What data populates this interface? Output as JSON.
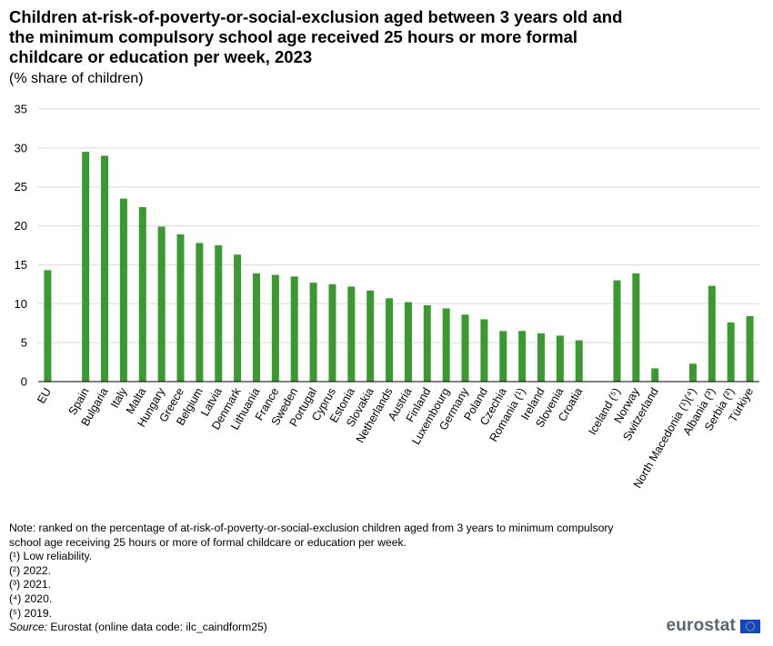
{
  "header": {
    "title": "Children at-risk-of-poverty-or-social-exclusion aged between 3 years old and the minimum compulsory school age received 25 hours or more formal childcare or education per week, 2023",
    "subtitle": "(% share of children)"
  },
  "colors": {
    "bar": "#3a9a2f",
    "grid": "#d9d9d9",
    "axis": "#000000",
    "logo_text": "#5b6770",
    "flag": "#0e47cb",
    "flag_star": "#ffcc00"
  },
  "chart_data": {
    "type": "bar",
    "title": "Children at-risk-of-poverty-or-social-exclusion aged between 3 years old and the minimum compulsory school age received 25 hours or more formal childcare or education per week, 2023",
    "ylabel": "% share of children",
    "ylim": [
      0,
      35
    ],
    "yticks": [
      0,
      5,
      10,
      15,
      20,
      25,
      30,
      35
    ],
    "grid": true,
    "categories": [
      "EU",
      "",
      "Spain",
      "Bulgaria",
      "Italy",
      "Malta",
      "Hungary",
      "Greece",
      "Belgium",
      "Latvia",
      "Denmark",
      "Lithuania",
      "France",
      "Sweden",
      "Portugal",
      "Cyprus",
      "Estonia",
      "Slovakia",
      "Netherlands",
      "Austria",
      "Finland",
      "Luxembourg",
      "Germany",
      "Poland",
      "Czechia",
      "Romania (¹)",
      "Ireland",
      "Slovenia",
      "Croatia",
      "",
      "Iceland (⁵)",
      "Norway",
      "Switzerland",
      "",
      "North Macedonia (¹)(⁴)",
      "Albania (³)",
      "Serbia (²)",
      "Türkiye"
    ],
    "values": [
      14.3,
      null,
      29.5,
      29.0,
      23.5,
      22.4,
      19.9,
      18.9,
      17.8,
      17.5,
      16.3,
      13.9,
      13.7,
      13.5,
      12.7,
      12.5,
      12.2,
      11.7,
      10.7,
      10.2,
      9.8,
      9.4,
      8.6,
      8.0,
      6.5,
      6.5,
      6.2,
      5.9,
      5.3,
      null,
      13.0,
      13.9,
      1.7,
      null,
      2.3,
      12.3,
      7.6,
      8.4
    ]
  },
  "notes": {
    "main": "Note: ranked on the percentage of at-risk-of-poverty-or-social-exclusion children aged from 3 years to minimum compulsory school age receiving 25 hours or more of formal childcare or education per week.",
    "footnotes": [
      "(¹) Low reliability.",
      "(²) 2022.",
      "(³) 2021.",
      "(⁴) 2020.",
      "(⁵) 2019."
    ],
    "source_label": "Source:",
    "source_text": " Eurostat (online data code: ilc_caindform25)"
  },
  "logo": {
    "text": "eurostat"
  }
}
